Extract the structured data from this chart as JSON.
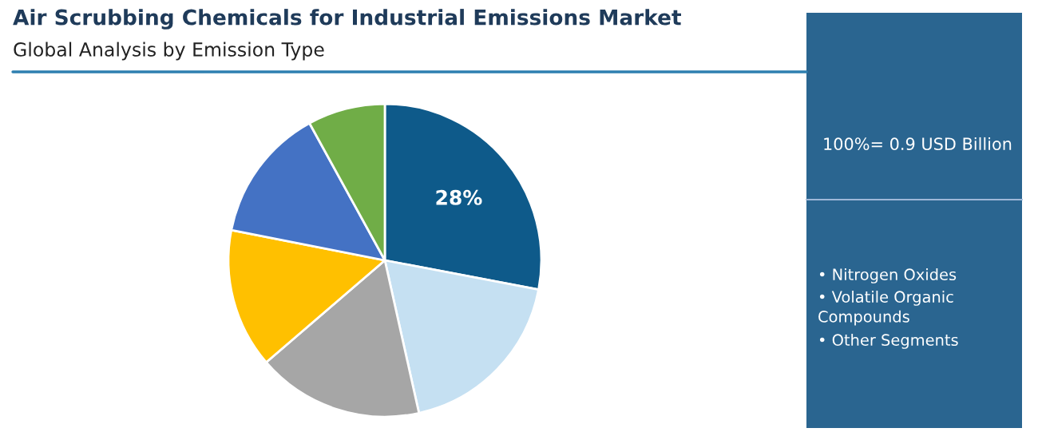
{
  "chart_data": {
    "type": "pie",
    "title": "Air Scrubbing Chemicals for Industrial Emissions Market",
    "subtitle": "Global Analysis by Emission Type",
    "categories": [
      null,
      null,
      null,
      null,
      null,
      null
    ],
    "values": [
      28,
      18.5,
      17.2,
      14.4,
      13.9,
      8
    ],
    "colors": [
      "#0e5a8a",
      "#c5e0f2",
      "#a6a6a6",
      "#ffc000",
      "#4472c4",
      "#70ad47"
    ],
    "value_labels": [
      "28%",
      null,
      null,
      null,
      null,
      null
    ],
    "legend": false,
    "annotations": [
      "100%= 0.9 USD Billion",
      "• Nitrogen Oxides",
      "• Volatile Organic\nCompounds",
      "• Other Segments"
    ]
  }
}
